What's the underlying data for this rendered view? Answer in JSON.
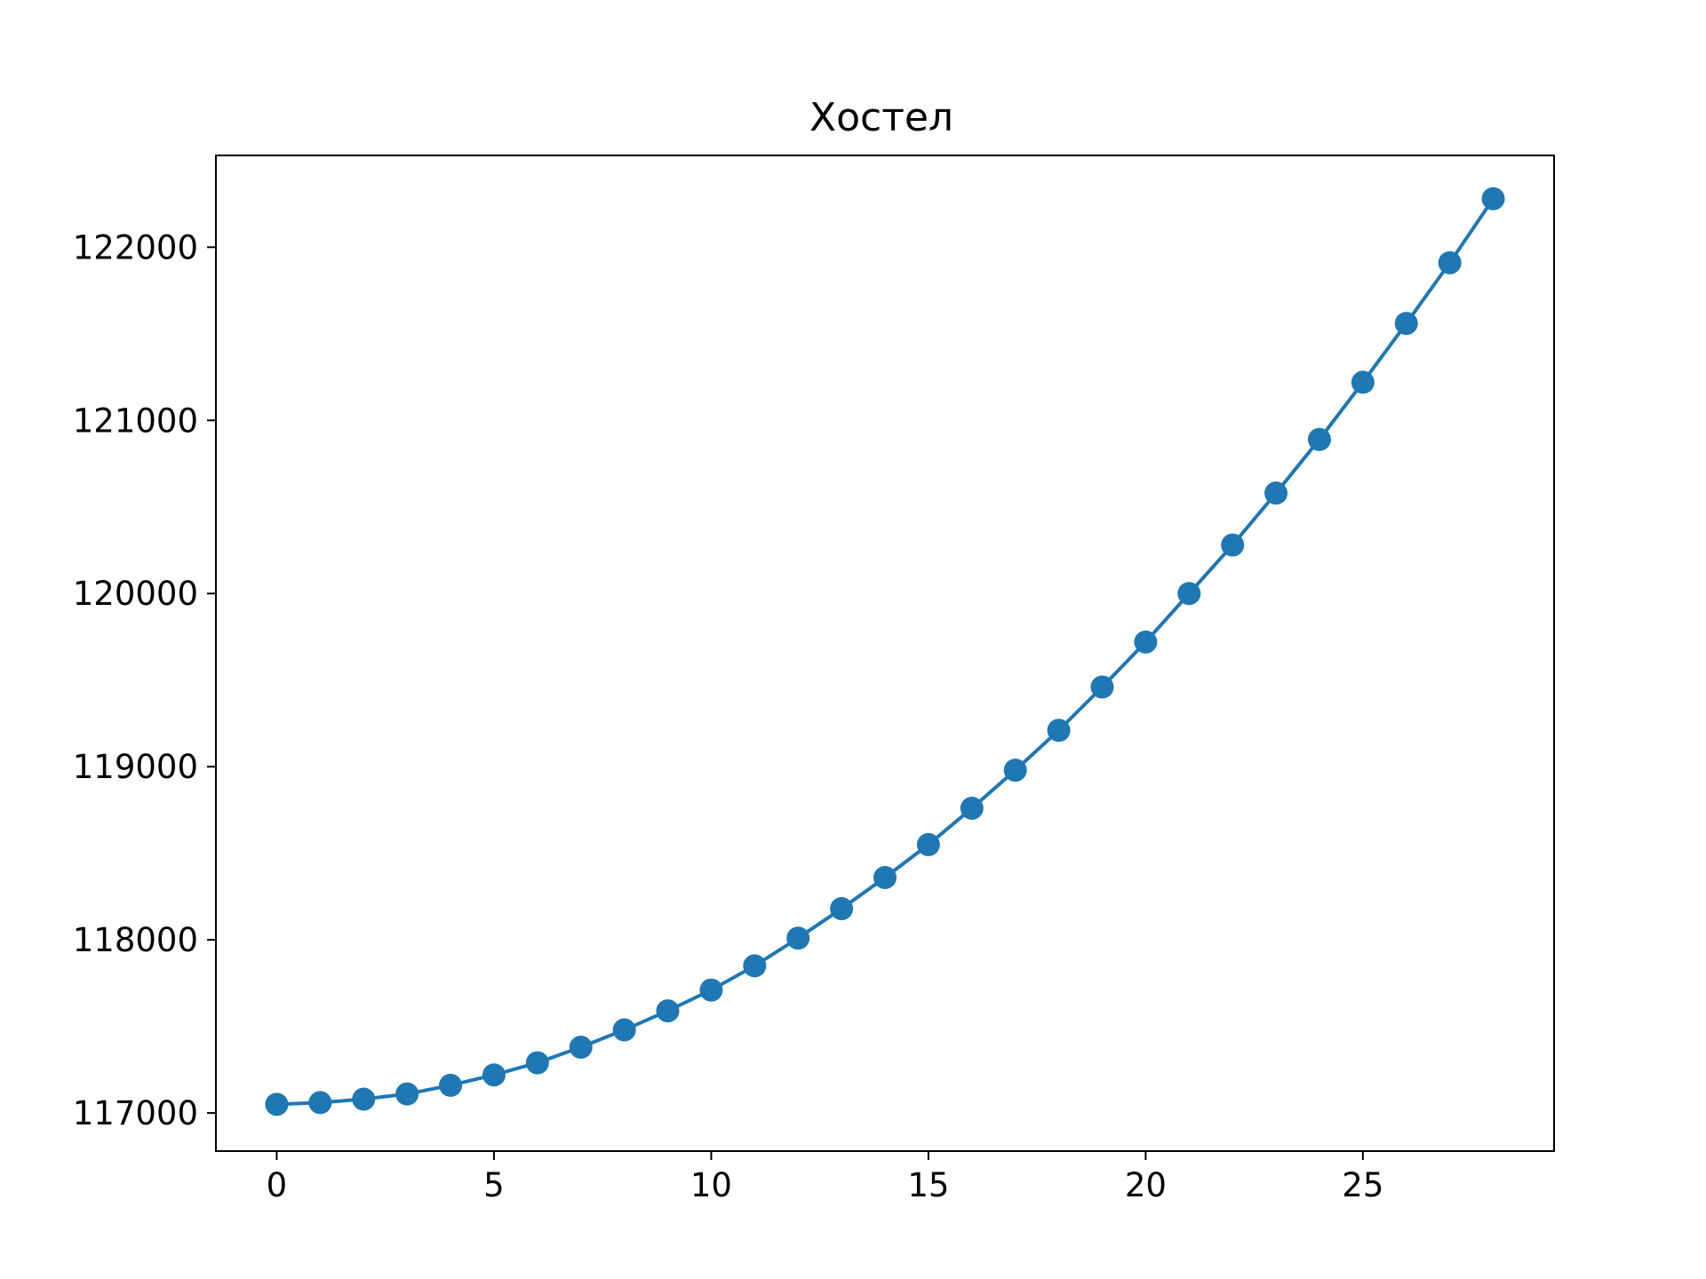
{
  "chart_data": {
    "type": "line",
    "title": "Хостел",
    "xlabel": "",
    "ylabel": "",
    "xlim": [
      -1.4,
      29.4
    ],
    "ylim": [
      116780,
      122530
    ],
    "x_ticks": [
      0,
      5,
      10,
      15,
      20,
      25
    ],
    "y_ticks": [
      117000,
      118000,
      119000,
      120000,
      121000,
      122000
    ],
    "x_tick_labels": [
      "0",
      "5",
      "10",
      "15",
      "20",
      "25"
    ],
    "y_tick_labels": [
      "117000",
      "118000",
      "119000",
      "120000",
      "121000",
      "122000"
    ],
    "grid": false,
    "legend": "none",
    "series": [
      {
        "color": "#1f77b4",
        "marker": "circle",
        "x": [
          0,
          1,
          2,
          3,
          4,
          5,
          6,
          7,
          8,
          9,
          10,
          11,
          12,
          13,
          14,
          15,
          16,
          17,
          18,
          19,
          20,
          21,
          22,
          23,
          24,
          25,
          26,
          27,
          28
        ],
        "values": [
          117050,
          117060,
          117080,
          117110,
          117160,
          117220,
          117290,
          117380,
          117480,
          117590,
          117710,
          117850,
          118010,
          118180,
          118360,
          118550,
          118760,
          118980,
          119210,
          119460,
          119720,
          120000,
          120280,
          120580,
          120890,
          121220,
          121560,
          121910,
          122280
        ]
      }
    ]
  }
}
